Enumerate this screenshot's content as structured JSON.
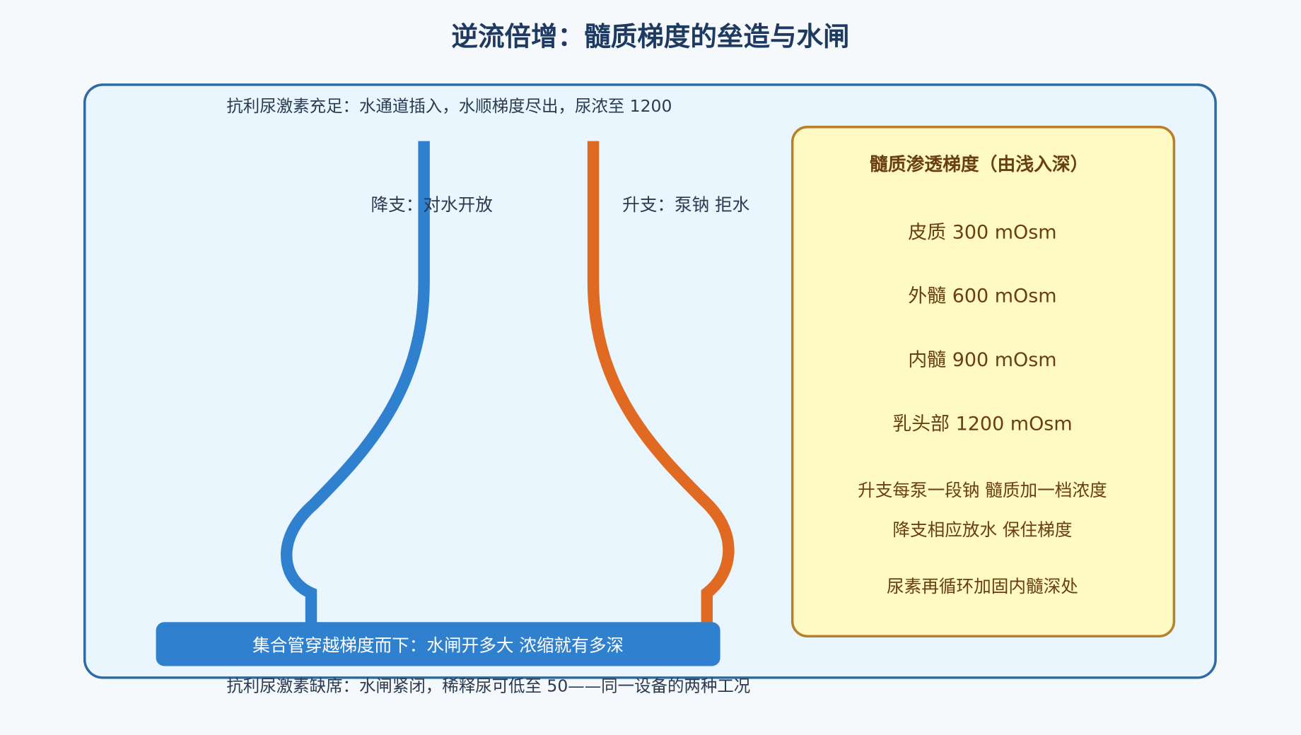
{
  "title": "逆流倍增：髓质梯度的垒造与水闸",
  "loop": {
    "top_note": "抗利尿激素充足：水通道插入，水顺梯度尽出，尿浓至 1200",
    "descending_label": "降支：对水开放",
    "ascending_label": "升支：泵钠 拒水",
    "collecting_duct": "集合管穿越梯度而下：水闸开多大 浓缩就有多深",
    "bottom_note": "抗利尿激素缺席：水闸紧闭，稀释尿可低至 50——同一设备的两种工况"
  },
  "panel": {
    "title": "髓质渗透梯度（由浅入深）",
    "layers": [
      "皮质 300 mOsm",
      "外髓 600 mOsm",
      "内髓 900 mOsm",
      "乳头部 1200 mOsm"
    ],
    "notes": [
      "升支每泵一段钠 髓质加一档浓度",
      "降支相应放水 保住梯度",
      "尿素再循环加固内髓深处"
    ]
  }
}
